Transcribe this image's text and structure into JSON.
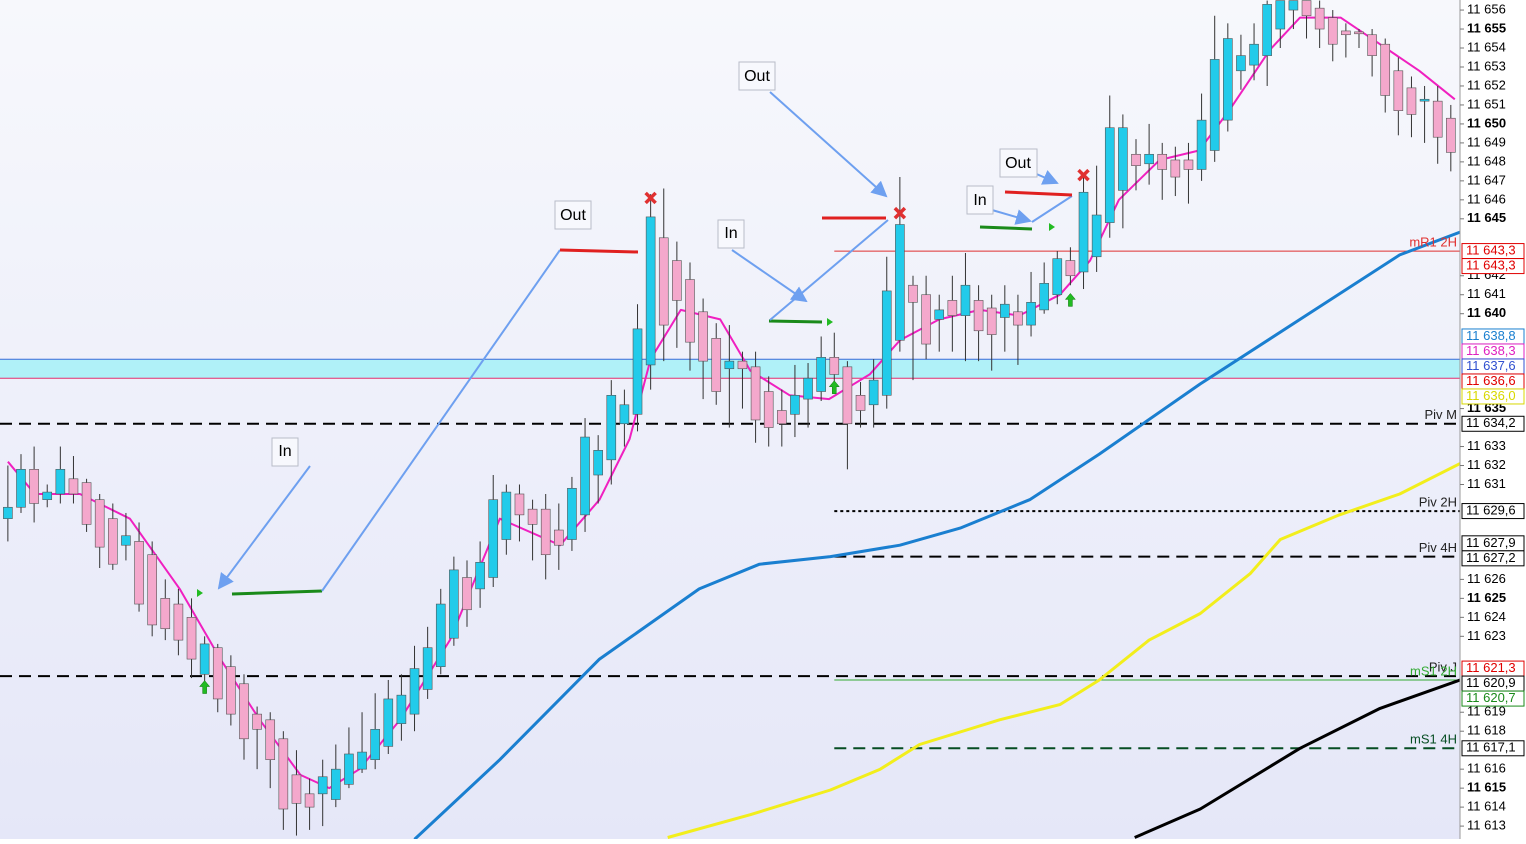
{
  "chart_data": {
    "type": "candlestick",
    "xlim": [
      -0.6,
      110.7
    ],
    "ylim": [
      11612.32,
      11656.53
    ],
    "yticks": [
      {
        "value": 11656,
        "label": "11 656"
      },
      {
        "value": 11655,
        "label": "11 655"
      },
      {
        "value": 11654,
        "label": "11 654"
      },
      {
        "value": 11653,
        "label": "11 653"
      },
      {
        "value": 11652,
        "label": "11 652"
      },
      {
        "value": 11651,
        "label": "11 651"
      },
      {
        "value": 11650,
        "label": "11 650"
      },
      {
        "value": 11649,
        "label": "11 649"
      },
      {
        "value": 11648,
        "label": "11 648"
      },
      {
        "value": 11647,
        "label": "11 647"
      },
      {
        "value": 11646,
        "label": "11 646"
      },
      {
        "value": 11645,
        "label": "11 645"
      },
      {
        "value": 11642,
        "label": "11 642"
      },
      {
        "value": 11641,
        "label": "11 641"
      },
      {
        "value": 11640,
        "label": "11 640"
      },
      {
        "value": 11635,
        "label": "11 635"
      },
      {
        "value": 11633,
        "label": "11 633"
      },
      {
        "value": 11632,
        "label": "11 632"
      },
      {
        "value": 11631,
        "label": "11 631"
      },
      {
        "value": 11626,
        "label": "11 626"
      },
      {
        "value": 11625,
        "label": "11 625"
      },
      {
        "value": 11624,
        "label": "11 624"
      },
      {
        "value": 11623,
        "label": "11 623"
      },
      {
        "value": 11619,
        "label": "11 619"
      },
      {
        "value": 11618,
        "label": "11 618"
      },
      {
        "value": 11616,
        "label": "11 616"
      },
      {
        "value": 11615,
        "label": "11 615"
      },
      {
        "value": 11614,
        "label": "11 614"
      },
      {
        "value": 11613,
        "label": "11 613"
      }
    ],
    "up_color": "#22cbea",
    "down_color": "#f4a8cc",
    "open": [
      11629.2,
      11629.8,
      11631.8,
      11630.2,
      11630.5,
      11631.3,
      11631.1,
      11630.2,
      11629.2,
      11627.8,
      11628.0,
      11627.3,
      11625.0,
      11624.7,
      11624.0,
      11621.0,
      11622.4,
      11621.4,
      11620.5,
      11618.9,
      11618.6,
      11617.6,
      11615.7,
      11614.7,
      11614.7,
      11614.4,
      11615.2,
      11616.0,
      11616.5,
      11617.2,
      11618.4,
      11618.9,
      11620.2,
      11621.4,
      11622.9,
      11626.1,
      11625.5,
      11626.1,
      11628.1,
      11630.5,
      11629.7,
      11629.7,
      11628.6,
      11628.1,
      11629.4,
      11631.5,
      11632.3,
      11634.2,
      11634.7,
      11637.3,
      11644.0,
      11642.8,
      11641.8,
      11640.1,
      11638.7,
      11637.1,
      11637.5,
      11637.2,
      11635.9,
      11634.9,
      11634.7,
      11635.5,
      11635.9,
      11637.7,
      11637.2,
      11635.7,
      11635.2,
      11635.7,
      11638.6,
      11641.5,
      11641.0,
      11639.7,
      11640.7,
      11639.9,
      11640.7,
      11640.3,
      11639.8,
      11640.1,
      11639.4,
      11640.2,
      11641.0,
      11642.8,
      11642.2,
      11643.0,
      11644.8,
      11646.5,
      11648.4,
      11647.9,
      11648.4,
      11648.1,
      11648.1,
      11647.6,
      11648.6,
      11650.2,
      11652.8,
      11653.1,
      11653.6,
      11655.0,
      11656.0,
      11656.5,
      11656.1,
      11655.6,
      11654.9,
      11654.85,
      11654.7,
      11654.2,
      11652.8,
      11651.9,
      11651.2,
      11651.2,
      11650.3
    ],
    "high": [
      11632.0,
      11632.6,
      11633.0,
      11631.0,
      11633.0,
      11632.5,
      11631.3,
      11630.5,
      11630.0,
      11629.5,
      11629.0,
      11628.0,
      11626.0,
      11625.5,
      11625.0,
      11623.0,
      11622.6,
      11622.0,
      11621.0,
      11619.3,
      11619.0,
      11618.0,
      11617.0,
      11615.5,
      11616.5,
      11617.3,
      11618.2,
      11619.0,
      11620.0,
      11620.7,
      11621.0,
      11622.5,
      11623.5,
      11625.5,
      11627.2,
      11627.0,
      11628.0,
      11631.5,
      11631.0,
      11631.0,
      11630.2,
      11630.5,
      11630.0,
      11631.4,
      11634.5,
      11633.6,
      11636.5,
      11636.0,
      11640.5,
      11646.3,
      11646.6,
      11643.8,
      11642.7,
      11640.8,
      11639.5,
      11639.4,
      11638.0,
      11638.0,
      11636.7,
      11636.0,
      11637.3,
      11637.4,
      11638.8,
      11639.0,
      11637.5,
      11636.4,
      11637.6,
      11643.0,
      11647.2,
      11642.0,
      11642.0,
      11641.0,
      11642.0,
      11643.2,
      11641.5,
      11641.0,
      11641.5,
      11641.0,
      11642.2,
      11642.7,
      11643.3,
      11643.5,
      11647.3,
      11647.8,
      11651.5,
      11650.5,
      11649.2,
      11650.0,
      11649.0,
      11648.8,
      11649.0,
      11651.6,
      11655.7,
      11655.3,
      11654.7,
      11655.3,
      11656.5,
      11656.5,
      11656.5,
      11656.5,
      11656.5,
      11656.0,
      11655.3,
      11655.0,
      11655.0,
      11654.5,
      11653.5,
      11652.5,
      11652.0,
      11652.0,
      11651.0
    ],
    "low": [
      11628.0,
      11629.5,
      11629.0,
      11629.8,
      11630.0,
      11630.0,
      11628.5,
      11626.6,
      11626.5,
      11627.0,
      11624.3,
      11623.0,
      11622.8,
      11622.0,
      11620.8,
      11620.0,
      11619.0,
      11618.3,
      11616.5,
      11616.0,
      11615.0,
      11612.8,
      11612.5,
      11612.8,
      11613.0,
      11614.0,
      11615.0,
      11615.8,
      11616.0,
      11616.8,
      11617.5,
      11618.0,
      11619.7,
      11621.0,
      11622.5,
      11623.5,
      11624.5,
      11625.6,
      11627.3,
      11628.0,
      11627.0,
      11626.0,
      11626.5,
      11627.5,
      11628.5,
      11630.0,
      11631.0,
      11633.0,
      11633.8,
      11636.0,
      11637.5,
      11638.2,
      11637.0,
      11635.5,
      11635.2,
      11634.0,
      11635.0,
      11633.2,
      11633.0,
      11633.0,
      11633.5,
      11634.0,
      11635.4,
      11636.0,
      11631.8,
      11634.0,
      11634.0,
      11635.0,
      11638.0,
      11636.5,
      11637.6,
      11638.0,
      11638.0,
      11637.5,
      11637.5,
      11637.0,
      11638.0,
      11637.3,
      11638.8,
      11640.0,
      11640.5,
      11641.5,
      11641.3,
      11642.2,
      11644.0,
      11644.5,
      11646.5,
      11646.8,
      11646.0,
      11646.2,
      11645.8,
      11647.0,
      11648.0,
      11649.6,
      11651.8,
      11652.3,
      11652.0,
      11654.0,
      11655.0,
      11654.5,
      11654.0,
      11653.3,
      11653.5,
      11654.0,
      11652.5,
      11650.6,
      11649.4,
      11649.3,
      11649.0,
      11647.9,
      11647.5
    ],
    "close": [
      11629.8,
      11631.8,
      11630.0,
      11630.6,
      11631.8,
      11630.5,
      11628.9,
      11627.7,
      11626.8,
      11628.3,
      11624.7,
      11623.6,
      11623.4,
      11622.8,
      11621.8,
      11622.6,
      11619.7,
      11618.9,
      11617.6,
      11618.1,
      11616.5,
      11613.9,
      11614.2,
      11614.0,
      11615.6,
      11616.0,
      11616.8,
      11616.9,
      11618.1,
      11619.7,
      11619.9,
      11621.3,
      11622.4,
      11624.7,
      11626.5,
      11624.4,
      11626.9,
      11630.2,
      11630.6,
      11629.4,
      11628.9,
      11627.3,
      11627.8,
      11630.8,
      11633.5,
      11632.8,
      11635.7,
      11635.2,
      11639.2,
      11645.1,
      11639.4,
      11640.7,
      11638.5,
      11637.5,
      11635.9,
      11637.5,
      11637.1,
      11634.4,
      11634.0,
      11634.2,
      11635.7,
      11636.6,
      11637.7,
      11636.8,
      11634.2,
      11634.9,
      11636.5,
      11641.2,
      11644.7,
      11640.6,
      11638.4,
      11640.2,
      11639.9,
      11641.5,
      11639.1,
      11638.9,
      11640.5,
      11639.4,
      11640.6,
      11641.6,
      11642.9,
      11642.0,
      11646.4,
      11645.2,
      11649.8,
      11649.8,
      11647.8,
      11648.4,
      11647.6,
      11647.2,
      11647.6,
      11650.2,
      11653.4,
      11654.5,
      11653.6,
      11654.2,
      11656.3,
      11656.5,
      11656.5,
      11655.7,
      11655.0,
      11654.2,
      11654.7,
      11654.75,
      11653.6,
      11651.5,
      11650.7,
      11650.5,
      11651.3,
      11649.3,
      11648.5
    ],
    "lines": [
      {
        "color": "#1a7fd0",
        "width": 3,
        "x": [
          31.0,
          37.5,
          45.1,
          52.7,
          57.3,
          62.7,
          68,
          72.6,
          77.9,
          83.2,
          90.9,
          98.5,
          106.1,
          110.7
        ],
        "values": [
          11612.3,
          11616.5,
          11621.8,
          11625.5,
          11626.8,
          11627.2,
          11627.8,
          11628.7,
          11630.2,
          11632.6,
          11636.3,
          11639.7,
          11643.1,
          11644.3
        ]
      },
      {
        "color": "#f2ee1c",
        "width": 3,
        "x": [
          50.3,
          56.6,
          62.7,
          66.5,
          69.5,
          75.6,
          80.2,
          83.2,
          87,
          90.9,
          94.7,
          97,
          101.5,
          106.1,
          110.7
        ],
        "values": [
          11612.4,
          11613.6,
          11614.9,
          11616.0,
          11617.3,
          11618.6,
          11619.4,
          11620.7,
          11622.8,
          11624.2,
          11626.3,
          11628.1,
          11629.4,
          11630.5,
          11632.1
        ]
      },
      {
        "color": "#000000",
        "width": 3,
        "x": [
          85.9,
          90.9,
          98.5,
          104.6,
          110.7
        ],
        "values": [
          11612.4,
          11613.9,
          11617.1,
          11619.2,
          11620.7
        ]
      },
      {
        "color": "#f020c0",
        "width": 2,
        "x": [
          0,
          2.05,
          5.5,
          9.3,
          13.1,
          16.2,
          19.2,
          22.3,
          24.5,
          26.8,
          29.9,
          33.7,
          37.5,
          42.1,
          45.1,
          47.4,
          49,
          51.3,
          54.3,
          56.6,
          59.6,
          62.6,
          65.7,
          68,
          71,
          74.1,
          77.1,
          80.2,
          82.5,
          84.7,
          87.8,
          90.8,
          93.1,
          96.2,
          98.5,
          101.6,
          104.6,
          107.6,
          110.3
        ],
        "values": [
          11632.2,
          11630.5,
          11630.5,
          11629.2,
          11625.5,
          11621.8,
          11618.6,
          11615.7,
          11615.0,
          11616.0,
          11618.6,
          11622.8,
          11629.2,
          11627.8,
          11630.2,
          11633.4,
          11637.6,
          11640.2,
          11639.7,
          11637.0,
          11635.7,
          11635.5,
          11636.8,
          11638.6,
          11639.7,
          11640.2,
          11639.9,
          11641.0,
          11642.8,
          11646.0,
          11648.1,
          11648.6,
          11650.7,
          11653.9,
          11655.6,
          11655.6,
          11654.2,
          11652.8,
          11651.3
        ]
      }
    ],
    "zone": {
      "from": 11636.6,
      "to": 11637.6,
      "color": "#b0f1f8"
    },
    "levels": [
      {
        "name": "mR1 2H",
        "value": 11643.3,
        "from": 63,
        "color": "#e03030",
        "style": "solid"
      },
      {
        "name": "Piv M",
        "value": 11634.2,
        "color": "#000000",
        "style": "dashed"
      },
      {
        "name": "Piv 2H",
        "value": 11629.6,
        "from": 63,
        "color": "#000000",
        "style": "dotted"
      },
      {
        "name": "Piv 4H",
        "value": 11627.2,
        "from": 63,
        "color": "#000000",
        "style": "dashed"
      },
      {
        "name": "Piv J",
        "value": 11620.9,
        "color": "#000000",
        "style": "dashed"
      },
      {
        "name": "mS1 2H",
        "value": 11620.7,
        "from": 63,
        "color": "#33aa33",
        "style": "solid"
      },
      {
        "name": "mS1 4H",
        "value": 11617.1,
        "from": 63,
        "color": "#064d22",
        "style": "dashed"
      }
    ],
    "price_labels": [
      {
        "value": 11643.3,
        "label": "11 643,3",
        "color": "#e00000"
      },
      {
        "value": 11643.3,
        "label": "11 643,3",
        "color": "#e00000"
      },
      {
        "value": 11638.8,
        "label": "11 638,8",
        "color": "#1a7fd0"
      },
      {
        "value": 11638.3,
        "label": "11 638,3",
        "color": "#e020c0"
      },
      {
        "value": 11637.6,
        "label": "11 637,6",
        "color": "#3050d0"
      },
      {
        "value": 11636.6,
        "label": "11 636,6",
        "color": "#e00000"
      },
      {
        "value": 11636.0,
        "label": "11 636,0",
        "color": "#d8d800"
      },
      {
        "value": 11634.2,
        "label": "11 634,2",
        "color": "#000000"
      },
      {
        "value": 11629.6,
        "label": "11 629,6",
        "color": "#000000"
      },
      {
        "value": 11627.9,
        "label": "11 627,9",
        "color": "#000000"
      },
      {
        "value": 11627.2,
        "label": "11 627,2",
        "color": "#000000"
      },
      {
        "value": 11621.3,
        "label": "11 621,3",
        "color": "#e00000"
      },
      {
        "value": 11620.9,
        "label": "11 620,9",
        "color": "#000000"
      },
      {
        "value": 11620.7,
        "label": "11 620,7",
        "color": "#1a8a1a"
      },
      {
        "value": 11617.1,
        "label": "11 617,1",
        "color": "#000000"
      }
    ],
    "markers": [
      {
        "kind": "exit",
        "x": 49,
        "value": 11646.1
      },
      {
        "kind": "exit",
        "x": 68,
        "value": 11645.3
      },
      {
        "kind": "exit",
        "x": 82,
        "value": 11647.3
      },
      {
        "kind": "entry",
        "x": 15,
        "value": 11620.3
      },
      {
        "kind": "entry",
        "x": 63,
        "value": 11636.1
      },
      {
        "kind": "entry",
        "x": 81,
        "value": 11640.7
      }
    ],
    "annotations": [
      "Out",
      "Out",
      "In",
      "In",
      "In",
      "Out"
    ]
  }
}
